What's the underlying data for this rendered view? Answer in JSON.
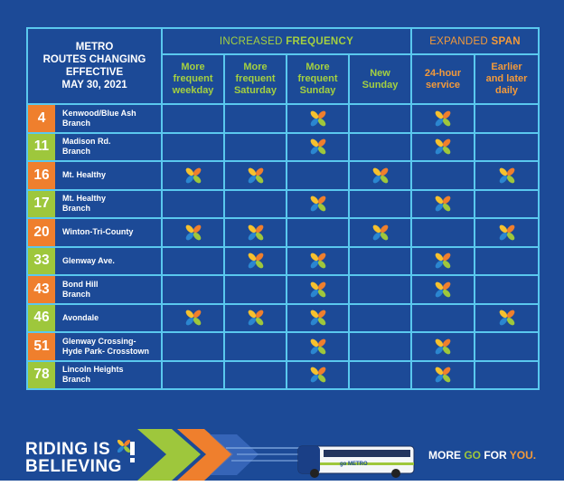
{
  "header": {
    "title_lines": [
      "METRO",
      "ROUTES CHANGING",
      "EFFECTIVE",
      "MAY 30, 2021"
    ],
    "group_frequency": {
      "prefix": "INCREASED",
      "bold": "FREQUENCY"
    },
    "group_span": {
      "prefix": "EXPANDED",
      "bold": "SPAN"
    },
    "columns": [
      {
        "lines": [
          "More",
          "frequent",
          "weekday"
        ]
      },
      {
        "lines": [
          "More",
          "frequent",
          "Saturday"
        ]
      },
      {
        "lines": [
          "More",
          "frequent",
          "Sunday"
        ]
      },
      {
        "lines": [
          "New",
          "Sunday"
        ]
      },
      {
        "lines": [
          "24-hour",
          "service"
        ]
      },
      {
        "lines": [
          "Earlier",
          "and later",
          "daily"
        ]
      }
    ]
  },
  "routes": [
    {
      "num": "4",
      "color": "#ef7f2d",
      "name_lines": [
        "Kenwood/Blue Ash",
        "Branch"
      ],
      "marks": [
        false,
        false,
        true,
        false,
        true,
        false
      ]
    },
    {
      "num": "11",
      "color": "#9ec73c",
      "name_lines": [
        "Madison Rd.",
        "Branch"
      ],
      "marks": [
        false,
        false,
        true,
        false,
        true,
        false
      ]
    },
    {
      "num": "16",
      "color": "#ef7f2d",
      "name_lines": [
        "Mt. Healthy"
      ],
      "marks": [
        true,
        true,
        false,
        true,
        false,
        true
      ]
    },
    {
      "num": "17",
      "color": "#9ec73c",
      "name_lines": [
        "Mt. Healthy",
        "Branch"
      ],
      "marks": [
        false,
        false,
        true,
        false,
        true,
        false
      ]
    },
    {
      "num": "20",
      "color": "#ef7f2d",
      "name_lines": [
        "Winton-Tri-County"
      ],
      "marks": [
        true,
        true,
        false,
        true,
        false,
        true
      ]
    },
    {
      "num": "33",
      "color": "#9ec73c",
      "name_lines": [
        "Glenway Ave."
      ],
      "marks": [
        false,
        true,
        true,
        false,
        true,
        false
      ]
    },
    {
      "num": "43",
      "color": "#ef7f2d",
      "name_lines": [
        "Bond Hill",
        "Branch"
      ],
      "marks": [
        false,
        false,
        true,
        false,
        true,
        false
      ]
    },
    {
      "num": "46",
      "color": "#9ec73c",
      "name_lines": [
        "Avondale"
      ],
      "marks": [
        true,
        true,
        true,
        false,
        false,
        true
      ]
    },
    {
      "num": "51",
      "color": "#ef7f2d",
      "name_lines": [
        "Glenway Crossing-",
        "Hyde Park- Crosstown"
      ],
      "marks": [
        false,
        false,
        true,
        false,
        true,
        false
      ]
    },
    {
      "num": "78",
      "color": "#9ec73c",
      "name_lines": [
        "Lincoln Heights",
        "Branch"
      ],
      "marks": [
        false,
        false,
        true,
        false,
        true,
        false
      ]
    }
  ],
  "footer": {
    "tagline_lines": [
      "RIDING IS",
      "BELIEVING"
    ],
    "bus_label": "go METRO",
    "slogan": {
      "a": "MORE ",
      "b": "GO",
      "c": " FOR ",
      "d": "YOU."
    }
  },
  "colors": {
    "panel": "#1c4a97",
    "grid_line": "#5ac8ee",
    "green": "#9ec73c",
    "orange": "#ef7f2d"
  }
}
